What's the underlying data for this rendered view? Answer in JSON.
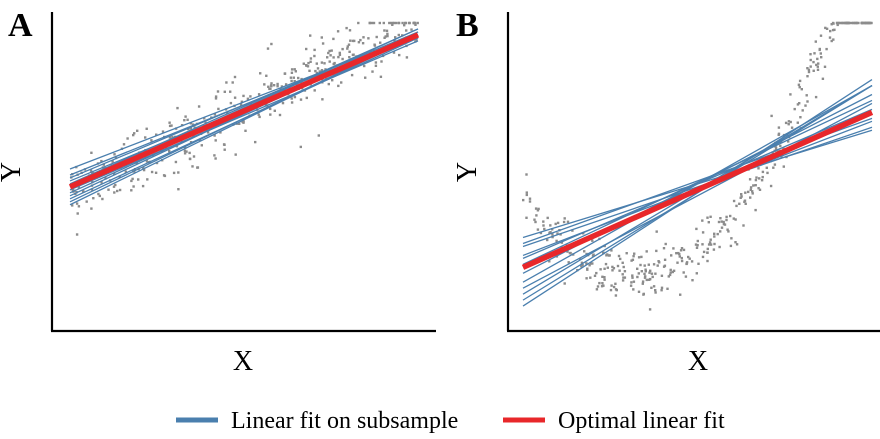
{
  "colors": {
    "subsample_fit": "#4a7fae",
    "optimal_fit": "#e8272a",
    "points": "#8c8c8c"
  },
  "legend": {
    "items": [
      {
        "label": "Linear fit on subsample",
        "color": "#4a7fae"
      },
      {
        "label": "Optimal linear fit",
        "color": "#e8272a"
      }
    ],
    "placement": "bottom"
  },
  "chart_data": [
    {
      "panel": "A",
      "type": "scatter",
      "xlabel": "X",
      "ylabel": "Y",
      "xlim": [
        0,
        1
      ],
      "ylim": [
        0,
        1
      ],
      "grid": false,
      "scatter": {
        "n": 420,
        "slope": 0.58,
        "intercept": 0.42,
        "noise": 0.055
      },
      "series": [
        {
          "name": "Optimal linear fit",
          "lines": [
            {
              "intercept": 0.44,
              "slope": 0.51
            }
          ]
        },
        {
          "name": "Linear fit on subsample",
          "lines": [
            {
              "intercept": 0.4,
              "slope": 0.54
            },
            {
              "intercept": 0.47,
              "slope": 0.49
            },
            {
              "intercept": 0.42,
              "slope": 0.53
            },
            {
              "intercept": 0.5,
              "slope": 0.45
            },
            {
              "intercept": 0.38,
              "slope": 0.57
            },
            {
              "intercept": 0.45,
              "slope": 0.52
            },
            {
              "intercept": 0.43,
              "slope": 0.5
            },
            {
              "intercept": 0.41,
              "slope": 0.55
            },
            {
              "intercept": 0.48,
              "slope": 0.47
            },
            {
              "intercept": 0.39,
              "slope": 0.56
            },
            {
              "intercept": 0.46,
              "slope": 0.48
            },
            {
              "intercept": 0.44,
              "slope": 0.53
            }
          ]
        }
      ]
    },
    {
      "panel": "B",
      "type": "scatter",
      "xlabel": "X",
      "ylabel": "Y",
      "xlim": [
        0,
        1
      ],
      "ylim": [
        0,
        1
      ],
      "grid": false,
      "scatter": {
        "n": 420,
        "shape": "quadratic",
        "noise": 0.045
      },
      "series": [
        {
          "name": "Optimal linear fit",
          "lines": [
            {
              "intercept": 0.17,
              "slope": 0.52
            }
          ]
        },
        {
          "name": "Linear fit on subsample",
          "lines": [
            {
              "intercept": 0.27,
              "slope": 0.36
            },
            {
              "intercept": 0.24,
              "slope": 0.4
            },
            {
              "intercept": 0.21,
              "slope": 0.45
            },
            {
              "intercept": 0.18,
              "slope": 0.55
            },
            {
              "intercept": 0.15,
              "slope": 0.6
            },
            {
              "intercept": 0.12,
              "slope": 0.66
            },
            {
              "intercept": 0.08,
              "slope": 0.7
            },
            {
              "intercept": 0.04,
              "slope": 0.76
            },
            {
              "intercept": 0.2,
              "slope": 0.5
            },
            {
              "intercept": 0.1,
              "slope": 0.62
            },
            {
              "intercept": 0.25,
              "slope": 0.42
            },
            {
              "intercept": 0.06,
              "slope": 0.72
            }
          ]
        }
      ]
    }
  ]
}
